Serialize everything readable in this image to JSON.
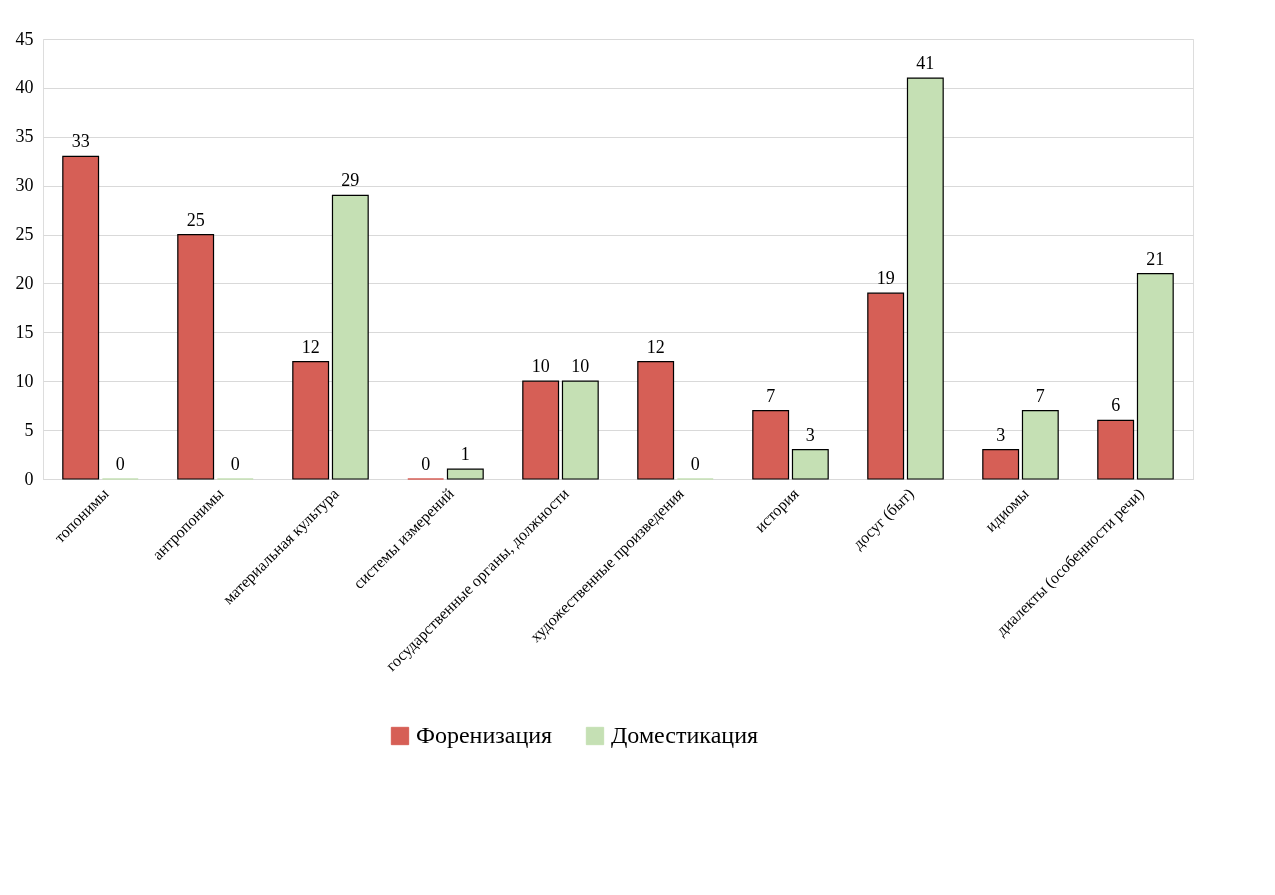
{
  "chart_data": {
    "type": "bar",
    "categories": [
      "топонимы",
      "антропонимы",
      "материальная культура",
      "системы измерений",
      "государственные органы, должности",
      "художественные произведения",
      "история",
      "досуг (быт)",
      "идиомы",
      "диалекты (особенности речи)"
    ],
    "series": [
      {
        "name": "Форенизация",
        "color": "#d65f56",
        "values": [
          33,
          25,
          12,
          0,
          10,
          12,
          7,
          19,
          3,
          6
        ]
      },
      {
        "name": "Доместикация",
        "color": "#c5e0b4",
        "values": [
          0,
          0,
          29,
          1,
          10,
          0,
          3,
          41,
          7,
          21
        ]
      }
    ],
    "ylim": [
      0,
      45
    ],
    "yticks": [
      0,
      5,
      10,
      15,
      20,
      25,
      30,
      35,
      40,
      45
    ],
    "grid": "y",
    "legend": "bottom",
    "data_labels": true
  }
}
